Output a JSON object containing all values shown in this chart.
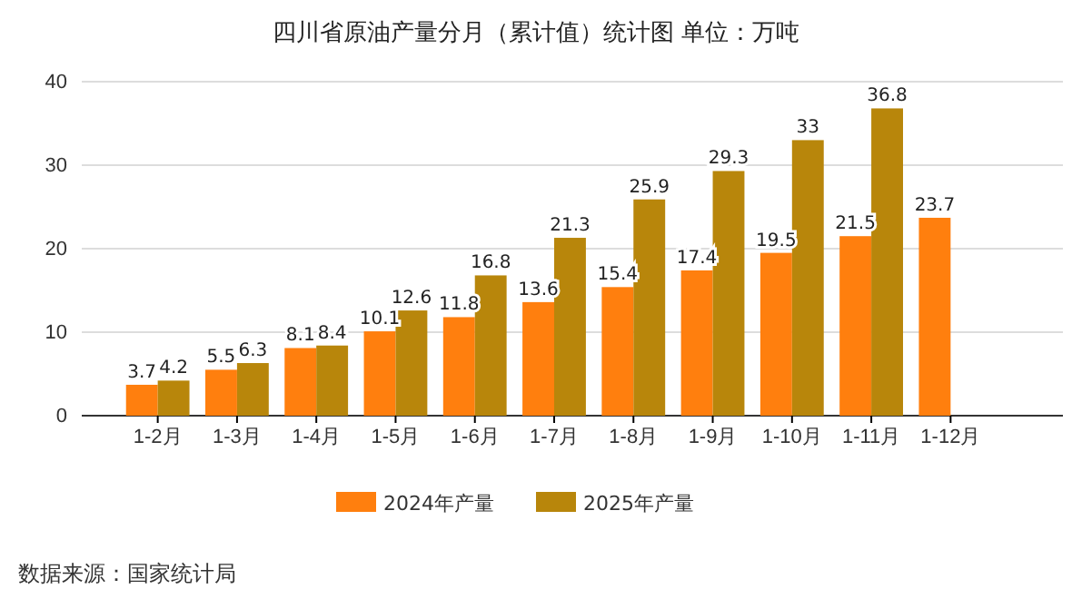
{
  "chart_data": {
    "type": "bar",
    "title": "四川省原油产量分月（累计值）统计图  单位：万吨",
    "categories": [
      "1-2月",
      "1-3月",
      "1-4月",
      "1-5月",
      "1-6月",
      "1-7月",
      "1-8月",
      "1-9月",
      "1-10月",
      "1-11月",
      "1-12月"
    ],
    "series": [
      {
        "name": "2024年产量",
        "color": "#ff7f0e",
        "values": [
          3.7,
          5.5,
          8.1,
          10.1,
          11.8,
          13.6,
          15.4,
          17.4,
          19.5,
          21.5,
          23.7
        ]
      },
      {
        "name": "2025年产量",
        "color": "#b8860b",
        "values": [
          4.2,
          6.3,
          8.4,
          12.6,
          16.8,
          21.3,
          25.9,
          29.3,
          33,
          36.8,
          null
        ]
      }
    ],
    "ylim": [
      0,
      40
    ],
    "yticks": [
      0,
      10,
      20,
      30,
      40
    ],
    "grid": "y",
    "legend": "bottom",
    "data_labels": true,
    "annotations": [
      "数据来源：国家统计局"
    ]
  }
}
